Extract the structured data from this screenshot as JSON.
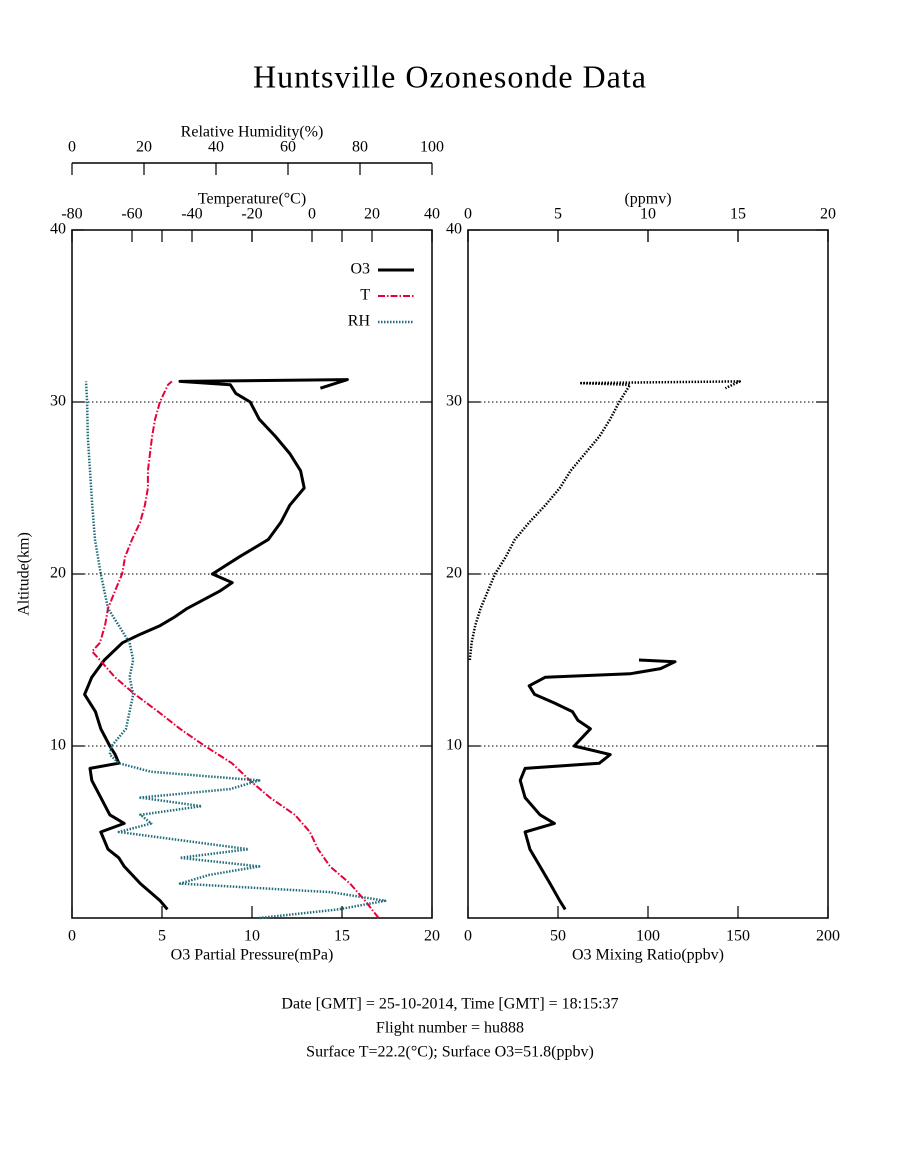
{
  "title": "Huntsville Ozonesonde Data",
  "footer": [
    "Date [GMT] = 25-10-2014,  Time [GMT] = 18:15:37",
    "Flight number = hu888",
    "Surface T=22.2(°C); Surface O3=51.8(ppbv)"
  ],
  "chart_data": [
    {
      "type": "line",
      "ylabel": "Altitude(km)",
      "ylim": [
        0,
        40
      ],
      "yticks": [
        10,
        20,
        30,
        40
      ],
      "grid": true,
      "legend": "upper right",
      "axes": {
        "bottom": {
          "label": "O3 Partial Pressure(mPa)",
          "lim": [
            0,
            20
          ],
          "ticks": [
            0,
            5,
            10,
            15,
            20
          ]
        },
        "top": {
          "label": "Temperature(°C)",
          "lim": [
            -80,
            40
          ],
          "ticks": [
            -80,
            -60,
            -40,
            -20,
            0,
            20,
            40
          ]
        },
        "top2": {
          "label": "Relative Humidity(%)",
          "lim": [
            0,
            100
          ],
          "ticks": [
            0,
            20,
            40,
            60,
            80,
            100
          ]
        }
      },
      "series": [
        {
          "name": "O3",
          "color": "#000000",
          "axis": "bottom",
          "style": "solid",
          "values": [
            5.3,
            4.9,
            3.8,
            2.9,
            2.6,
            2.0,
            1.6,
            2.9,
            2.1,
            1.6,
            1.1,
            1.0,
            2.6,
            2.4,
            2.1,
            1.6,
            1.3,
            0.7,
            1.1,
            1.8,
            2.8,
            3.8,
            4.9,
            5.7,
            6.4,
            8.2,
            8.9,
            7.8,
            9.3,
            10.9,
            11.6,
            12.1,
            12.9,
            12.7,
            12.1,
            11.3,
            10.4,
            9.9,
            9.1,
            8.8,
            6.0,
            15.3,
            13.8
          ],
          "altitude": [
            0.5,
            1,
            2,
            3,
            3.5,
            4,
            5,
            5.5,
            6,
            7,
            8,
            8.7,
            9,
            9.5,
            10,
            11,
            12,
            13,
            14,
            15,
            16,
            16.5,
            17,
            17.5,
            18,
            19,
            19.5,
            20,
            21,
            22,
            23,
            24,
            25,
            26,
            27,
            28,
            29,
            30,
            30.5,
            31,
            31.2,
            31.3,
            30.8
          ]
        },
        {
          "name": "T",
          "color": "#e8003a",
          "axis": "top",
          "style": "dashdot",
          "values": [
            22.2,
            17.7,
            12.7,
            6,
            2,
            -0.7,
            -5.7,
            -14,
            -20.7,
            -26.7,
            -35.7,
            -44,
            -51.3,
            -59,
            -65.7,
            -70.7,
            -73.3,
            -70.7,
            -69,
            -68,
            -65.7,
            -63.3,
            -62.3,
            -60,
            -57.3,
            -55.7,
            -54.7,
            -54.7,
            -54,
            -53.3,
            -52.3,
            -50.7,
            -48,
            -46.7
          ],
          "altitude": [
            0,
            1,
            2,
            3,
            4,
            5,
            6,
            7,
            8,
            9,
            10,
            11,
            12,
            13,
            14,
            15,
            15.5,
            16,
            17,
            18,
            19,
            20,
            21,
            22,
            23,
            24,
            25,
            26,
            27,
            28,
            29,
            30,
            31,
            31.2
          ]
        },
        {
          "name": "RH",
          "color": "#1f6d7a",
          "axis": "top2",
          "style": "dotted",
          "values": [
            52,
            74,
            87,
            72,
            30,
            38,
            52,
            30,
            49,
            13,
            22,
            19,
            36,
            19,
            44,
            52,
            22,
            13,
            10.5,
            11,
            15,
            16,
            17,
            16,
            17,
            16,
            13,
            10,
            9,
            8,
            6.4,
            5.6,
            5,
            4.4,
            4.2,
            3.9
          ],
          "altitude": [
            0,
            0.5,
            1,
            1.5,
            2,
            2.5,
            3,
            3.5,
            4,
            5,
            5.5,
            6,
            6.5,
            7,
            7.5,
            8,
            8.5,
            9,
            9.5,
            10,
            11,
            12,
            13,
            14,
            15,
            16,
            17,
            18,
            19,
            20,
            22,
            24,
            26,
            28,
            30,
            31.2
          ]
        }
      ]
    },
    {
      "type": "line",
      "ylim": [
        0,
        40
      ],
      "yticks": [
        10,
        20,
        30,
        40
      ],
      "grid": true,
      "axes": {
        "bottom": {
          "label": "O3 Mixing Ratio(ppbv)",
          "lim": [
            0,
            200
          ],
          "ticks": [
            0,
            50,
            100,
            150,
            200
          ]
        },
        "top": {
          "label": "(ppmv)",
          "lim": [
            0,
            20
          ],
          "ticks": [
            0,
            5,
            10,
            15,
            20
          ]
        }
      },
      "series": [
        {
          "color": "#000000",
          "axis": "bottom",
          "style": "solid",
          "values": [
            54,
            51,
            45.6,
            40,
            34.4,
            31.7,
            48,
            40,
            31.7,
            29,
            31.7,
            73,
            79,
            59,
            68,
            61,
            58,
            48,
            37,
            34,
            43,
            90,
            107,
            115,
            95
          ],
          "altitude": [
            0.5,
            1,
            2,
            3,
            4,
            5,
            5.5,
            6,
            7,
            8,
            8.7,
            9,
            9.5,
            10,
            11,
            11.5,
            12,
            12.5,
            13,
            13.5,
            14,
            14.2,
            14.5,
            14.9,
            15
          ]
        },
        {
          "color": "#000000",
          "axis": "top",
          "style": "dotted",
          "values": [
            0.1,
            0.2,
            0.4,
            0.7,
            1.1,
            1.5,
            2.1,
            2.6,
            3.4,
            4.3,
            5.1,
            5.7,
            6.5,
            7.3,
            7.9,
            8.4,
            9.0,
            6.2,
            15.1,
            14.3
          ],
          "altitude": [
            15,
            16,
            17,
            18,
            19,
            20,
            21,
            22,
            23,
            24,
            25,
            26,
            27,
            28,
            29,
            30,
            31,
            31.1,
            31.2,
            30.8
          ]
        }
      ]
    }
  ]
}
